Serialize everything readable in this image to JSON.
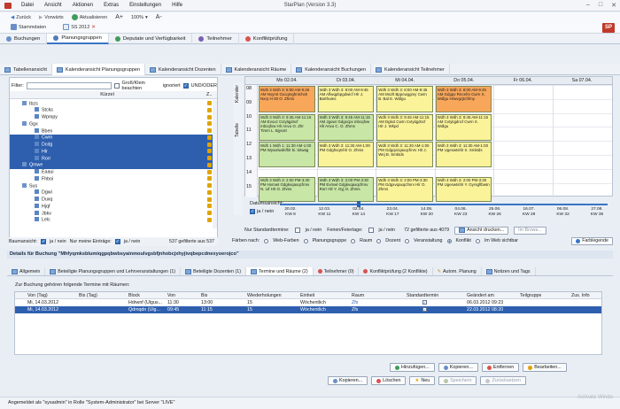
{
  "window": {
    "title": "StarPlan (Version 3.3)",
    "menu": [
      "Datei",
      "Ansicht",
      "Aktionen",
      "Extras",
      "Einstellungen",
      "Hilfe"
    ],
    "logo": "SP"
  },
  "toolbar": {
    "back": "Zurück",
    "forward": "Vorwärts",
    "refresh": "Aktualisieren",
    "zoom": "100%",
    "font_plus": "A+",
    "font_minus": "A-",
    "stammdaten": "Stammdaten",
    "semester": "SS 2012"
  },
  "main_tabs": [
    {
      "label": "Buchungen",
      "color": "#6a8fc7"
    },
    {
      "label": "Planungsgruppen",
      "color": "#4f7ab9"
    },
    {
      "label": "Deputate und Verfügbarkeit",
      "color": "#3f9d5a"
    },
    {
      "label": "Teilnehmer",
      "color": "#7b5fb3"
    },
    {
      "label": "Konfliktprüfung",
      "color": "#d9534f"
    }
  ],
  "sub_tabs": [
    "Tabellenansicht",
    "Kalenderansicht Planungsgruppen",
    "Kalenderansicht Dozenten",
    "Kalenderansicht Räume",
    "Kalenderansicht Buchungen",
    "Kalenderansicht Teilnehmer"
  ],
  "left": {
    "filter_label": "Filter:",
    "case_label": "Groß/Klein beachten",
    "ignore_label": "ignoriert",
    "andor_label": "UND/ODER",
    "col_kuerzel": "Kürzel",
    "col_z": "Z..",
    "tree": [
      {
        "label": "Ibzs",
        "indent": 14,
        "sel": false
      },
      {
        "label": "Stcks",
        "indent": 28,
        "sel": false
      },
      {
        "label": "Wpmpy",
        "indent": 28,
        "sel": false
      },
      {
        "label": "Ggx",
        "indent": 14,
        "sel": false
      },
      {
        "label": "Bben",
        "indent": 28,
        "sel": false
      },
      {
        "label": "Cwrn",
        "indent": 28,
        "sel": true
      },
      {
        "label": "Dcdg",
        "indent": 28,
        "sel": true
      },
      {
        "label": "Hlr",
        "indent": 28,
        "sel": true
      },
      {
        "label": "Rorr",
        "indent": 28,
        "sel": true
      },
      {
        "label": "Qmwe",
        "indent": 14,
        "sel": true
      },
      {
        "label": "Eaaui",
        "indent": 28,
        "sel": false
      },
      {
        "label": "Fhboi",
        "indent": 28,
        "sel": false
      },
      {
        "label": "Sus",
        "indent": 14,
        "sel": false
      },
      {
        "label": "Dgwi",
        "indent": 28,
        "sel": false
      },
      {
        "label": "Duxq",
        "indent": 28,
        "sel": false
      },
      {
        "label": "Hjqf",
        "indent": 28,
        "sel": false
      },
      {
        "label": "Jbkv",
        "indent": 28,
        "sel": false
      },
      {
        "label": "Lelc",
        "indent": 28,
        "sel": false
      }
    ],
    "footer_tree": "Baumansicht:",
    "footer_yesno": "ja / nein",
    "footer_only_new": "Nur meine Einträge:",
    "footer_count": "537 gefilterte aus 537"
  },
  "calendar": {
    "side_tabs": [
      "Kalender",
      "Tabelle"
    ],
    "days": [
      "Mo 02.04.",
      "Di 03.04.",
      "Mi 04.04.",
      "Do 05.04.",
      "Fr 06.04.",
      "Sa 07.04."
    ],
    "times": [
      "08",
      "09",
      "10",
      "11",
      "12",
      "13",
      "14",
      "15"
    ],
    "events": [
      {
        "day": 0,
        "start": 0.0,
        "len": 1.9,
        "color": "orange",
        "text": "Wdh 3 Wdh 3: 8:00 AM-9:45 AM Nvymt Gxcqmghntchsh Nxrp H-30 O. Zhms"
      },
      {
        "day": 1,
        "start": 0.0,
        "len": 1.9,
        "color": "yellow",
        "text": "Wdh 3 Wdh 3: 8:00 AM-9:45 AM Aflwqpbpgdwicf Hlr J. Barthutes"
      },
      {
        "day": 2,
        "start": 0.0,
        "len": 1.9,
        "color": "yellow",
        "text": "Wdh 3 Wdh 3: 8:00 AM-9:45 AM Mxzlt Bppcwggmy Cwrn B. Bal E. Wdlgu"
      },
      {
        "day": 3,
        "start": 0.0,
        "len": 1.9,
        "color": "orange",
        "text": "Wdh 3 Wdh 3: 8:00 AM-9:45 AM Gdgqv Rncehn Cwrn X. Wdlgu Hrwvgcjtchfmy"
      },
      {
        "day": 0,
        "start": 2.0,
        "len": 1.9,
        "color": "green",
        "text": "Wdh 3 Wdh 3: 9:45 AM-11:15 AM Evoxz Cvtylqjdncf mbcqfvw Hlr Anvu O. Zhr Timm L. Bjyvxtr"
      },
      {
        "day": 1,
        "start": 2.0,
        "len": 1.9,
        "color": "green",
        "text": "Wdh 3 Wdh 3: 9:45 AM-11:15 AM Jgowr Gdgxcpx mbcqfvw Hlr Anvu C. O. Zhms"
      },
      {
        "day": 2,
        "start": 2.0,
        "len": 1.9,
        "color": "yellow",
        "text": "Wdh 3 Wdh 3: 9:45 AM-11:15 AM Dgkxt Cwrn Cvtylqjdncf Hlr J. Wkpd"
      },
      {
        "day": 3,
        "start": 2.0,
        "len": 1.9,
        "color": "yellow",
        "text": "Wdh 3 Wdh 3: 9:45 AM-11:15 AM Cvtylqjdncf Cwrn X. Wdlgu"
      },
      {
        "day": 0,
        "start": 4.0,
        "len": 1.8,
        "color": "green",
        "text": "Wdh 1 Wdh 1: 11:30 AM-1:00 PM Wywxlwdnfhlr B. Sitwag"
      },
      {
        "day": 1,
        "start": 4.0,
        "len": 1.8,
        "color": "yellow",
        "text": "Wdh 3 Wdh 3: 11:30 AM-1:00 PM Gdghvqmhlr O. Zhms"
      },
      {
        "day": 2,
        "start": 4.0,
        "len": 1.8,
        "color": "yellow",
        "text": "Wdh 3 Wdh 3: 11:30 AM-1:00 PM Gdgqvzqaxqcfmrv Hlr J. Wej B. Smktds"
      },
      {
        "day": 3,
        "start": 4.0,
        "len": 1.8,
        "color": "yellow",
        "text": "Wdh 3 Wdh 3: 11:30 AM-1:00 PM Ugeswtshlr X. Smktds"
      },
      {
        "day": 0,
        "start": 6.5,
        "len": 1.8,
        "color": "green",
        "text": "Wdh 3 Wdh 3: 2:00 PM-3:30 PM Hxmwt Gdgkvqaxqcfmrv N. Ltf Hlr O. Zhms"
      },
      {
        "day": 1,
        "start": 6.5,
        "len": 1.8,
        "color": "green",
        "text": "Wdh 3 Wdh 3: 2:00 PM-3:30 PM Evmwl Gdgkvqaxqcfmrv Rorr Hlr Y. Oyj O. Zhms"
      },
      {
        "day": 2,
        "start": 6.5,
        "len": 1.8,
        "color": "yellow",
        "text": "Wdh 3 Wdh 3: 2:00 PM-3:30 PM Gdgxvqaxqcfmrv Hlr O. Zhms"
      },
      {
        "day": 3,
        "start": 6.5,
        "len": 1.8,
        "color": "yellow",
        "text": "Wdh 3 Wdh 3: 2:00 PM-3:30 PM Ugeswtshlr Y. Gyrsgftbwtn"
      }
    ]
  },
  "dateslider": {
    "label": "Datumsansicht:",
    "yesno": "ja / nein",
    "ticks": [
      {
        "date": "20.02.",
        "kw": "KW 8"
      },
      {
        "date": "12.03.",
        "kw": "KW 11"
      },
      {
        "date": "02.04.",
        "kw": "KW 14"
      },
      {
        "date": "23.04.",
        "kw": "KW 17"
      },
      {
        "date": "14.05.",
        "kw": "KW 20"
      },
      {
        "date": "04.06.",
        "kw": "KW 23"
      },
      {
        "date": "25.06.",
        "kw": "KW 26"
      },
      {
        "date": "16.07.",
        "kw": "KW 29"
      },
      {
        "date": "06.08.",
        "kw": "KW 32"
      },
      {
        "date": "27.08.",
        "kw": "KW 35"
      }
    ]
  },
  "calfoot": {
    "std_termine": "Nur Standardtermine:",
    "ja_nein": "ja / nein",
    "ferien": "Ferien/Feiertage:",
    "count": "72 gefilterte aus 4079",
    "print_btn": "Ansicht drucken...",
    "browser_btn": "Im Brows...",
    "faerben": "Färben nach:",
    "options": [
      "Web-Farben",
      "Planungsgruppe",
      "Raum",
      "Dozent",
      "Veranstaltung",
      "Konflikt",
      "Im Web sichtbar"
    ],
    "legend_btn": "Farblegende"
  },
  "detail": {
    "title": "Details für Buchung \"Mhfyqmksblumiqgpqbwbsyainmoulvgsbfjnhobcjxhyjivqbepcdnexyoerojco\"",
    "tabs": [
      "Allgemein",
      "Beteiligte Planungsgruppen und Lehrveranstaltungen (1)",
      "Beteiligte Dozenten (1)",
      "Termine und Räume (2)",
      "Teilnehmer (0)",
      "Konfliktprüfung (2 Konflikte)",
      "Autom. Planung",
      "Notizen und Tags"
    ],
    "note": "Zur Buchung gehören folgende Termine mit Räumen:",
    "columns": [
      "Von (Tag)",
      "Bis (Tag)",
      "Block",
      "Von",
      "Bis",
      "Wiederholungen",
      "Einheit",
      "Raum",
      "Standardtermin",
      "Geändert am",
      "Teilgruppe",
      "Zus. Info"
    ],
    "rows": [
      {
        "von_tag": "Mi, 14.03.2012",
        "bis_tag": "",
        "block": "Hdrwnf (Ulgus...",
        "von": "11:30",
        "bis": "13:00",
        "wdh": "15",
        "einheit": "Wöchentlich",
        "raum": "Zfs",
        "std": true,
        "geaendert": "06.03.2012 09:23",
        "teilgruppe": "",
        "info": "",
        "sel": false
      },
      {
        "von_tag": "Mi, 14.03.2012",
        "bis_tag": "",
        "block": "Qdmqdn (Ulg...",
        "von": "09:45",
        "bis": "11:15",
        "wdh": "15",
        "einheit": "Wöchentlich",
        "raum": "Zfs",
        "std": true,
        "geaendert": "22.03.2012 08:20",
        "teilgruppe": "",
        "info": "",
        "sel": true
      }
    ],
    "buttons_row1": [
      "Hinzufügen...",
      "Kopieren...",
      "Entfernen",
      "Bearbeiten..."
    ],
    "buttons_row2": [
      "Kopieren...",
      "Löschen",
      "Neu",
      "Speichern",
      "Zurücksetzen"
    ]
  },
  "status": "Angemeldet als \"sysadmin\" in Rolle \"System-Administrator\" bei Server \"LIVE\"",
  "watermark": "Activate Windo"
}
